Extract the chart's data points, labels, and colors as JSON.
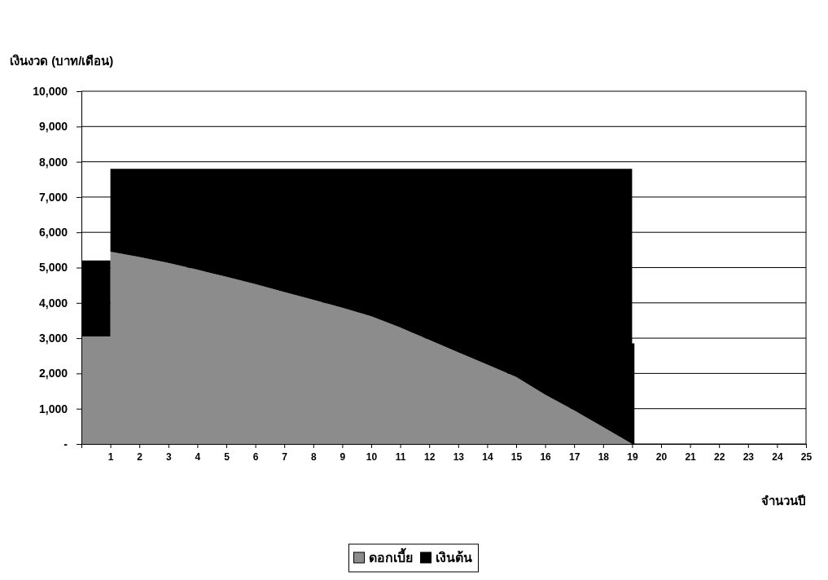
{
  "chart_data": {
    "type": "area",
    "stacked": true,
    "ylabel": "เงินงวด (บาท/เดือน)",
    "xlabel": "จำนวนปี",
    "x": [
      0,
      1,
      1,
      2,
      3,
      4,
      5,
      6,
      7,
      8,
      9,
      10,
      11,
      12,
      13,
      14,
      15,
      16,
      17,
      18,
      19,
      19,
      19.08
    ],
    "series": [
      {
        "name": "ดอกเบี้ย",
        "color": "#8c8c8c",
        "values": [
          3050,
          3050,
          5450,
          5300,
          5130,
          4940,
          4740,
          4530,
          4310,
          4090,
          3860,
          3620,
          3300,
          2950,
          2600,
          2250,
          1900,
          1400,
          950,
          480,
          0,
          0,
          0
        ]
      },
      {
        "name": "เงินต้น",
        "color": "#000000",
        "values": [
          2150,
          2150,
          2350,
          2500,
          2670,
          2860,
          3060,
          3270,
          3490,
          3710,
          3940,
          4180,
          4500,
          4850,
          5200,
          5550,
          5900,
          6400,
          6850,
          7320,
          7800,
          2850,
          2850
        ]
      }
    ],
    "xlim": [
      0,
      25
    ],
    "xticks": [
      {
        "value": 0,
        "label": null
      },
      1,
      2,
      3,
      4,
      5,
      6,
      7,
      8,
      9,
      10,
      11,
      12,
      13,
      14,
      15,
      16,
      17,
      18,
      19,
      20,
      21,
      22,
      23,
      24,
      25
    ],
    "ylim": [
      0,
      10000
    ],
    "yticks": [
      {
        "value": 0,
        "label": "-"
      },
      {
        "value": 1000,
        "label": "1,000"
      },
      {
        "value": 2000,
        "label": "2,000"
      },
      {
        "value": 3000,
        "label": "3,000"
      },
      {
        "value": 4000,
        "label": "4,000"
      },
      {
        "value": 5000,
        "label": "5,000"
      },
      {
        "value": 6000,
        "label": "6,000"
      },
      {
        "value": 7000,
        "label": "7,000"
      },
      {
        "value": 8000,
        "label": "8,000"
      },
      {
        "value": 9000,
        "label": "9,000"
      },
      {
        "value": 10000,
        "label": "10,000"
      }
    ],
    "grid": "y",
    "legend": "bottom"
  }
}
